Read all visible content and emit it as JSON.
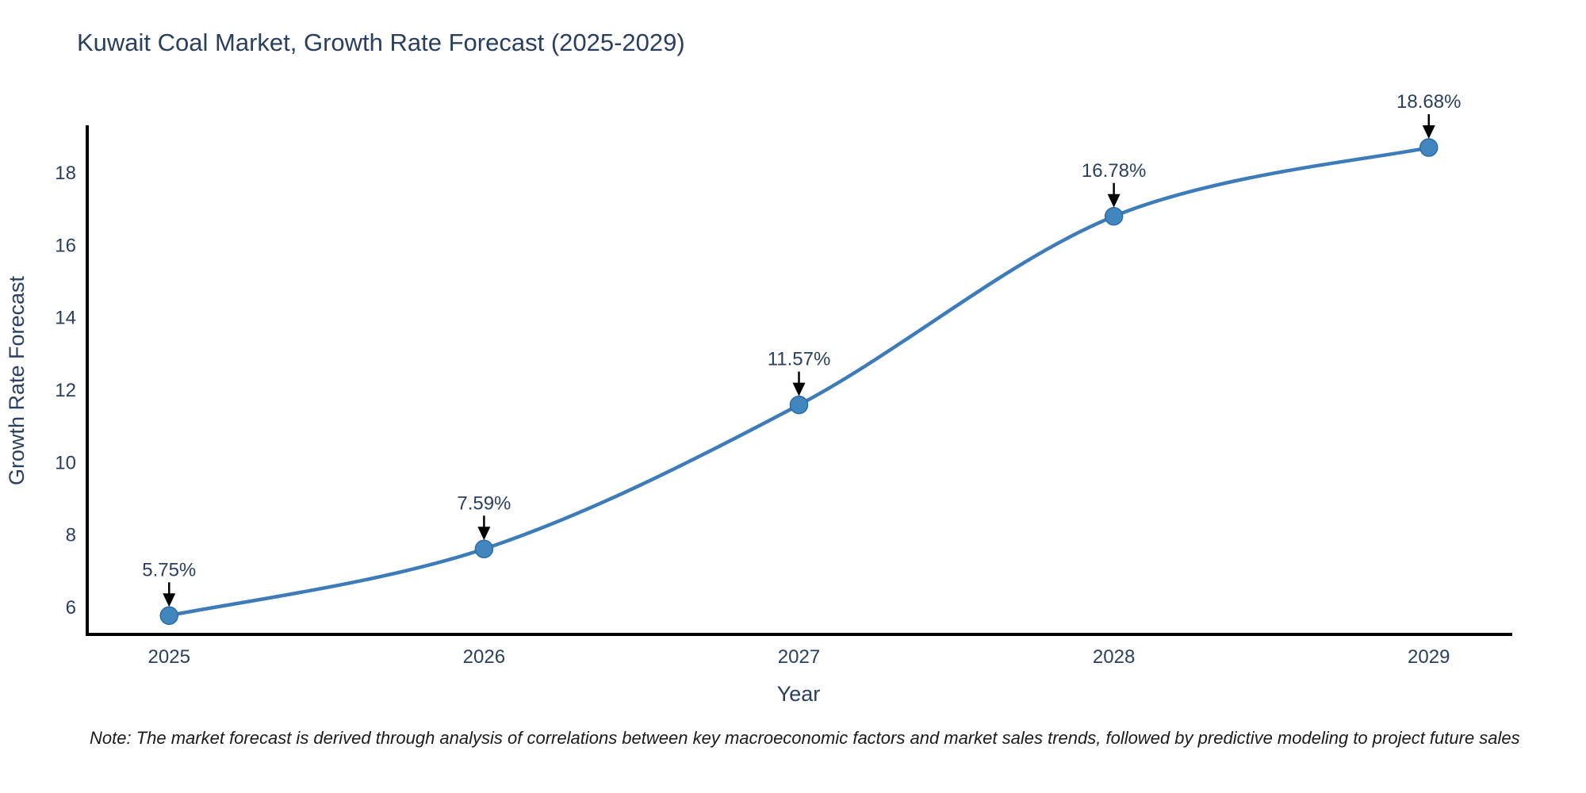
{
  "title": "Kuwait Coal Market, Growth Rate Forecast (2025-2029)",
  "note": "Note: The market forecast is derived through analysis of correlations between key macroeconomic factors and market sales trends, followed by predictive modeling to project future sales",
  "colors": {
    "line": "#3d7cb8",
    "marker_fill": "#4286c0",
    "marker_stroke": "#2e6ba3",
    "arrow": "#000000",
    "axis": "#000000",
    "text": "#2a3f5f",
    "note_text": "#1a1a1a",
    "background": "#ffffff"
  },
  "chart_data": {
    "type": "line",
    "title": "Kuwait Coal Market, Growth Rate Forecast (2025-2029)",
    "xlabel": "Year",
    "ylabel": "Growth Rate Forecast",
    "categories": [
      2025,
      2026,
      2027,
      2028,
      2029
    ],
    "series": [
      {
        "name": "Growth Rate Forecast",
        "values": [
          5.75,
          7.59,
          11.57,
          16.78,
          18.68
        ]
      }
    ],
    "point_labels": [
      "5.75%",
      "7.59%",
      "11.57%",
      "16.78%",
      "18.68%"
    ],
    "yticks": [
      6,
      8,
      10,
      12,
      14,
      16,
      18
    ],
    "xlim": [
      2024.74,
      2029.26
    ],
    "ylim": [
      5.23,
      19.25
    ],
    "line_shape": "spline",
    "grid": false,
    "legend": false,
    "annotation_arrows": true,
    "marker_radius": 11
  }
}
